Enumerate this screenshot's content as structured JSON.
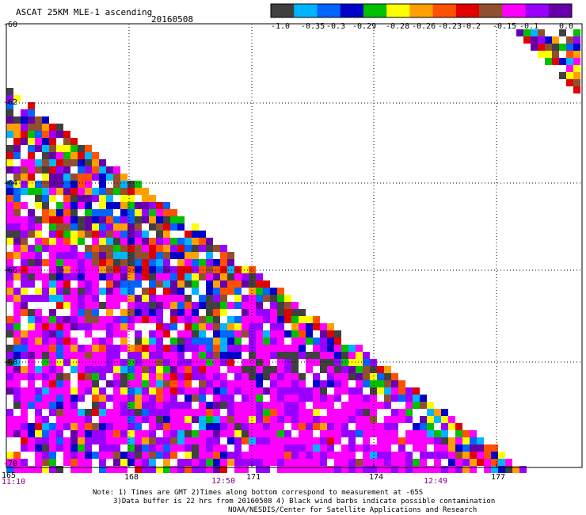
{
  "header": {
    "title": "ASCAT 25KM MLE-1 ascending",
    "date": "20160508"
  },
  "colorbar": {
    "colors": [
      "#404040",
      "#00b4ff",
      "#0064ff",
      "#0000c8",
      "#00c000",
      "#ffff00",
      "#ffa000",
      "#ff5000",
      "#e00000",
      "#905030",
      "#ff00ff",
      "#9900ff",
      "#6600aa"
    ],
    "tick_labels": [
      "-1.0",
      "-0.35",
      "-0.3",
      "-0.29",
      "-0.28",
      "-0.26",
      "-0.23",
      "-0.2",
      "-0.15",
      "-0.1",
      "0.0"
    ]
  },
  "map": {
    "lat_labels": [
      "-60",
      "-62",
      "-64",
      "-66",
      "-68",
      "-70"
    ],
    "lon_labels": [
      "165",
      "168",
      "171",
      "174",
      "177"
    ],
    "pass_times": [
      "11:10",
      "12:50",
      "12:49"
    ]
  },
  "notes": {
    "line1": "Note: 1) Times are GMT 2)Times along bottom correspond to measurement at -65S",
    "line2": "3)Data buffer is 22 hrs from 20160508 4) Black wind barbs indicate possible contamination",
    "line3": "NOAA/NESDIS/Center for Satellite Applications and Research"
  }
}
